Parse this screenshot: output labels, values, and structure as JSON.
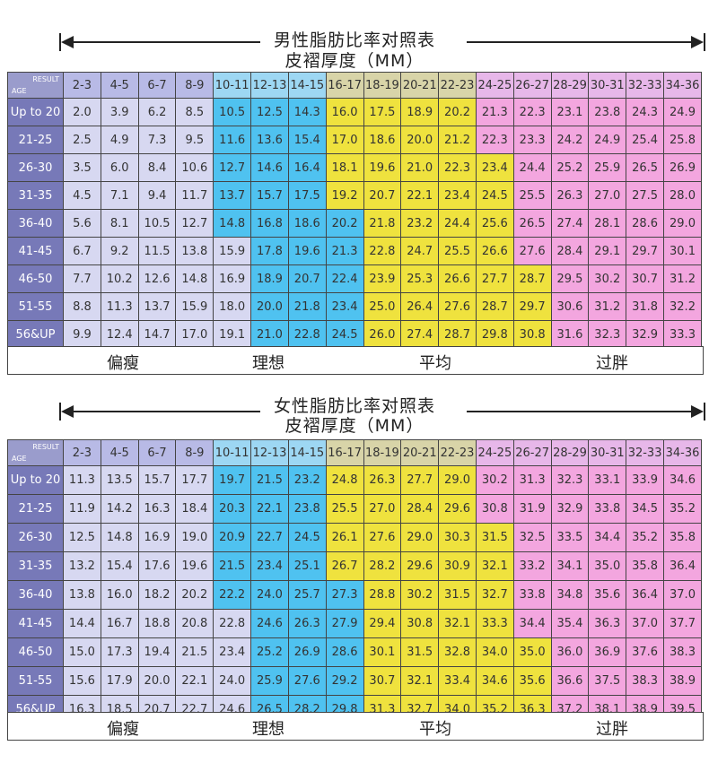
{
  "male": {
    "title": "男性脂肪比率对照表",
    "subtitle": "皮褶厚度（MM）",
    "corner_result": "RESULT",
    "corner_age": "AGE",
    "headers": [
      "2-3",
      "4-5",
      "6-7",
      "8-9",
      "10-11",
      "12-13",
      "14-15",
      "16-17",
      "18-19",
      "20-21",
      "22-23",
      "24-25",
      "26-27",
      "28-29",
      "30-31",
      "32-33",
      "34-36"
    ],
    "rows": [
      {
        "age": "Up to 20",
        "values": [
          "2.0",
          "3.9",
          "6.2",
          "8.5",
          "10.5",
          "12.5",
          "14.3",
          "16.0",
          "17.5",
          "18.9",
          "20.2",
          "21.3",
          "22.3",
          "23.1",
          "23.8",
          "24.3",
          "24.9"
        ],
        "ideal_start": 4,
        "avg_start": 7,
        "over_start": 11
      },
      {
        "age": "21-25",
        "values": [
          "2.5",
          "4.9",
          "7.3",
          "9.5",
          "11.6",
          "13.6",
          "15.4",
          "17.0",
          "18.6",
          "20.0",
          "21.2",
          "22.3",
          "23.3",
          "24.2",
          "24.9",
          "25.4",
          "25.8"
        ],
        "ideal_start": 4,
        "avg_start": 7,
        "over_start": 11
      },
      {
        "age": "26-30",
        "values": [
          "3.5",
          "6.0",
          "8.4",
          "10.6",
          "12.7",
          "14.6",
          "16.4",
          "18.1",
          "19.6",
          "21.0",
          "22.3",
          "23.4",
          "24.4",
          "25.2",
          "25.9",
          "26.5",
          "26.9"
        ],
        "ideal_start": 4,
        "avg_start": 7,
        "over_start": 12
      },
      {
        "age": "31-35",
        "values": [
          "4.5",
          "7.1",
          "9.4",
          "11.7",
          "13.7",
          "15.7",
          "17.5",
          "19.2",
          "20.7",
          "22.1",
          "23.4",
          "24.5",
          "25.5",
          "26.3",
          "27.0",
          "27.5",
          "28.0"
        ],
        "ideal_start": 4,
        "avg_start": 7,
        "over_start": 12
      },
      {
        "age": "36-40",
        "values": [
          "5.6",
          "8.1",
          "10.5",
          "12.7",
          "14.8",
          "16.8",
          "18.6",
          "20.2",
          "21.8",
          "23.2",
          "24.4",
          "25.6",
          "26.5",
          "27.4",
          "28.1",
          "28.6",
          "29.0"
        ],
        "ideal_start": 4,
        "avg_start": 8,
        "over_start": 12
      },
      {
        "age": "41-45",
        "values": [
          "6.7",
          "9.2",
          "11.5",
          "13.8",
          "15.9",
          "17.8",
          "19.6",
          "21.3",
          "22.8",
          "24.7",
          "25.5",
          "26.6",
          "27.6",
          "28.4",
          "29.1",
          "29.7",
          "30.1"
        ],
        "ideal_start": 5,
        "avg_start": 8,
        "over_start": 12
      },
      {
        "age": "46-50",
        "values": [
          "7.7",
          "10.2",
          "12.6",
          "14.8",
          "16.9",
          "18.9",
          "20.7",
          "22.4",
          "23.9",
          "25.3",
          "26.6",
          "27.7",
          "28.7",
          "29.5",
          "30.2",
          "30.7",
          "31.2"
        ],
        "ideal_start": 5,
        "avg_start": 8,
        "over_start": 13
      },
      {
        "age": "51-55",
        "values": [
          "8.8",
          "11.3",
          "13.7",
          "15.9",
          "18.0",
          "20.0",
          "21.8",
          "23.4",
          "25.0",
          "26.4",
          "27.6",
          "28.7",
          "29.7",
          "30.6",
          "31.2",
          "31.8",
          "32.2"
        ],
        "ideal_start": 5,
        "avg_start": 8,
        "over_start": 13
      },
      {
        "age": "56&UP",
        "values": [
          "9.9",
          "12.4",
          "14.7",
          "17.0",
          "19.1",
          "21.0",
          "22.8",
          "24.5",
          "26.0",
          "27.4",
          "28.7",
          "29.8",
          "30.8",
          "31.6",
          "32.3",
          "32.9",
          "33.3"
        ],
        "ideal_start": 5,
        "avg_start": 8,
        "over_start": 13
      }
    ],
    "legend": {
      "thin": "偏瘦",
      "ideal": "理想",
      "avg": "平均",
      "over": "过胖"
    }
  },
  "female": {
    "title": "女性脂肪比率对照表",
    "subtitle": "皮褶厚度（MM）",
    "corner_result": "RESULT",
    "corner_age": "AGE",
    "headers": [
      "2-3",
      "4-5",
      "6-7",
      "8-9",
      "10-11",
      "12-13",
      "14-15",
      "16-17",
      "18-19",
      "20-21",
      "22-23",
      "24-25",
      "26-27",
      "28-29",
      "30-31",
      "32-33",
      "34-36"
    ],
    "rows": [
      {
        "age": "Up to 20",
        "values": [
          "11.3",
          "13.5",
          "15.7",
          "17.7",
          "19.7",
          "21.5",
          "23.2",
          "24.8",
          "26.3",
          "27.7",
          "29.0",
          "30.2",
          "31.3",
          "32.3",
          "33.1",
          "33.9",
          "34.6"
        ],
        "ideal_start": 4,
        "avg_start": 7,
        "over_start": 11
      },
      {
        "age": "21-25",
        "values": [
          "11.9",
          "14.2",
          "16.3",
          "18.4",
          "20.3",
          "22.1",
          "23.8",
          "25.5",
          "27.0",
          "28.4",
          "29.6",
          "30.8",
          "31.9",
          "32.9",
          "33.8",
          "34.5",
          "35.2"
        ],
        "ideal_start": 4,
        "avg_start": 7,
        "over_start": 11
      },
      {
        "age": "26-30",
        "values": [
          "12.5",
          "14.8",
          "16.9",
          "19.0",
          "20.9",
          "22.7",
          "24.5",
          "26.1",
          "27.6",
          "29.0",
          "30.3",
          "31.5",
          "32.5",
          "33.5",
          "34.4",
          "35.2",
          "35.8"
        ],
        "ideal_start": 4,
        "avg_start": 7,
        "over_start": 12
      },
      {
        "age": "31-35",
        "values": [
          "13.2",
          "15.4",
          "17.6",
          "19.6",
          "21.5",
          "23.4",
          "25.1",
          "26.7",
          "28.2",
          "29.6",
          "30.9",
          "32.1",
          "33.2",
          "34.1",
          "35.0",
          "35.8",
          "36.4"
        ],
        "ideal_start": 4,
        "avg_start": 7,
        "over_start": 12
      },
      {
        "age": "36-40",
        "values": [
          "13.8",
          "16.0",
          "18.2",
          "20.2",
          "22.2",
          "24.0",
          "25.7",
          "27.3",
          "28.8",
          "30.2",
          "31.5",
          "32.7",
          "33.8",
          "34.8",
          "35.6",
          "36.4",
          "37.0"
        ],
        "ideal_start": 4,
        "avg_start": 8,
        "over_start": 12
      },
      {
        "age": "41-45",
        "values": [
          "14.4",
          "16.7",
          "18.8",
          "20.8",
          "22.8",
          "24.6",
          "26.3",
          "27.9",
          "29.4",
          "30.8",
          "32.1",
          "33.3",
          "34.4",
          "35.4",
          "36.3",
          "37.0",
          "37.7"
        ],
        "ideal_start": 5,
        "avg_start": 8,
        "over_start": 12
      },
      {
        "age": "46-50",
        "values": [
          "15.0",
          "17.3",
          "19.4",
          "21.5",
          "23.4",
          "25.2",
          "26.9",
          "28.6",
          "30.1",
          "31.5",
          "32.8",
          "34.0",
          "35.0",
          "36.0",
          "36.9",
          "37.6",
          "38.3"
        ],
        "ideal_start": 5,
        "avg_start": 8,
        "over_start": 13
      },
      {
        "age": "51-55",
        "values": [
          "15.6",
          "17.9",
          "20.0",
          "22.1",
          "24.0",
          "25.9",
          "27.6",
          "29.2",
          "30.7",
          "32.1",
          "33.4",
          "34.6",
          "35.6",
          "36.6",
          "37.5",
          "38.3",
          "38.9"
        ],
        "ideal_start": 5,
        "avg_start": 8,
        "over_start": 13
      },
      {
        "age": "56&UP",
        "values": [
          "16.3",
          "18.5",
          "20.7",
          "22.7",
          "24.6",
          "26.5",
          "28.2",
          "29.8",
          "31.3",
          "32.7",
          "34.0",
          "35.2",
          "36.3",
          "37.2",
          "38.1",
          "38.9",
          "39.5"
        ],
        "ideal_start": 5,
        "avg_start": 8,
        "over_start": 13
      }
    ],
    "legend": {
      "thin": "偏瘦",
      "ideal": "理想",
      "avg": "平均",
      "over": "过胖"
    }
  },
  "colors": {
    "thin": "#d7d8f1",
    "ideal": "#4fc2f0",
    "avg": "#efe23e",
    "over": "#f3a6df",
    "age_col": "#7779b8"
  }
}
